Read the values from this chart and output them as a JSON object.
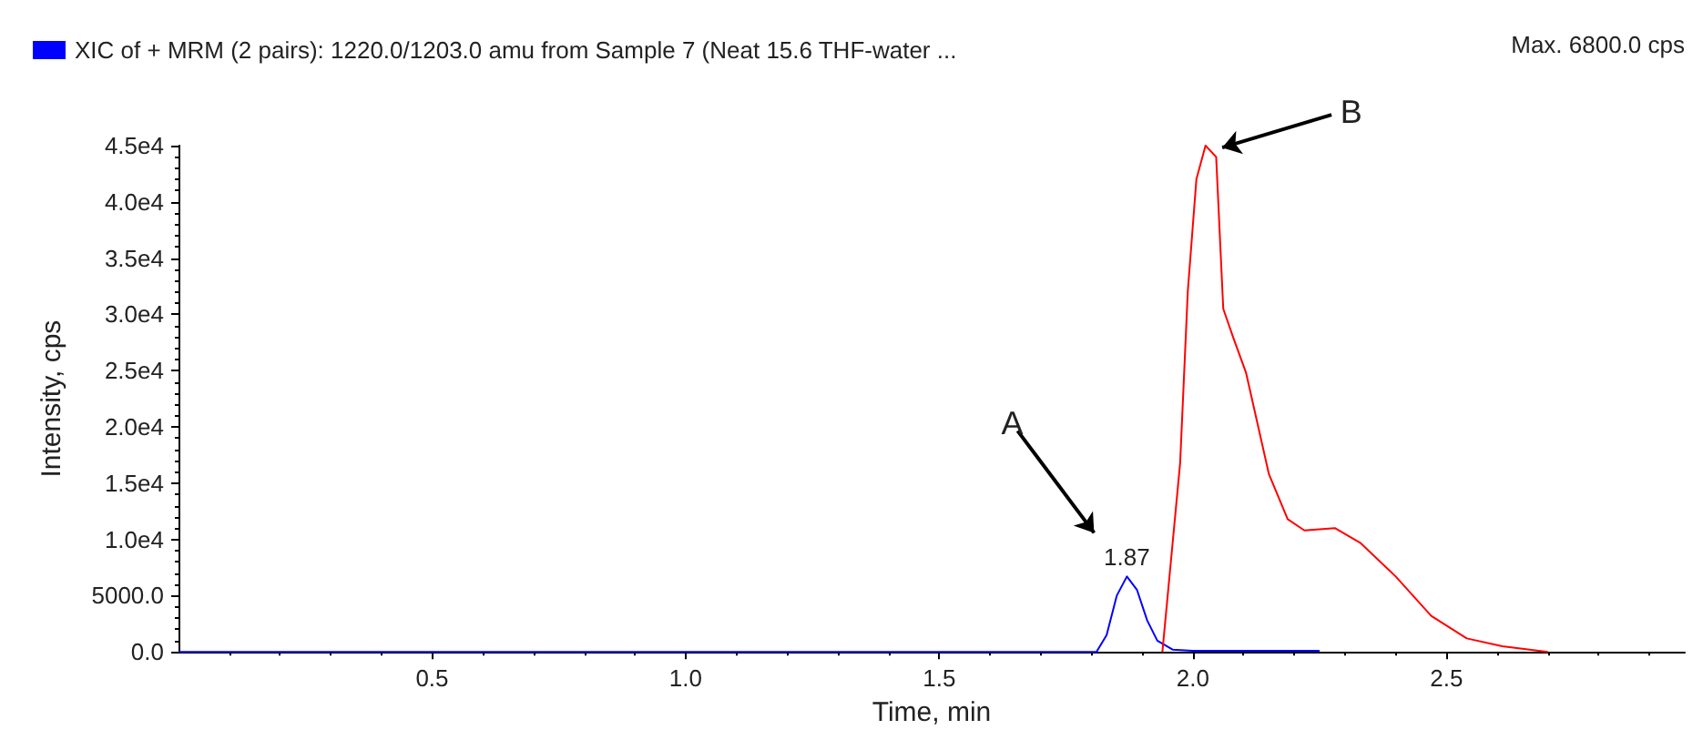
{
  "chart_data": {
    "type": "line",
    "xlabel": "Time, min",
    "ylabel": "Intensity, cps",
    "legend": "top left",
    "grid": false,
    "marker": "none",
    "line_style": "solid",
    "xlim": [
      0,
      2.97
    ],
    "xticks": [
      0.5,
      {
        "value": 1,
        "label": "1.0"
      },
      1.5,
      {
        "value": 2,
        "label": "2.0"
      },
      2.5
    ],
    "ylim": [
      0,
      45000
    ],
    "yticks": [
      {
        "value": 0,
        "label": "0.0"
      },
      {
        "value": 5000,
        "label": "5000.0"
      },
      {
        "value": 10000,
        "label": "1.0e4"
      },
      {
        "value": 15000,
        "label": "1.5e4"
      },
      {
        "value": 20000,
        "label": "2.0e4"
      },
      {
        "value": 25000,
        "label": "2.5e4"
      },
      {
        "value": 30000,
        "label": "3.0e4"
      },
      {
        "value": 35000,
        "label": "3.5e4"
      },
      {
        "value": 40000,
        "label": "4.0e4"
      },
      {
        "value": 45000,
        "label": "4.5e4"
      }
    ],
    "series": [
      {
        "name": "XIC of + MRM (2 pairs): 1220.0/1203.0 amu from Sample 7 (Neat 15.6 THF-water ...",
        "color": "#0000ff",
        "x": [
          0,
          1.8,
          1.81,
          1.83,
          1.85,
          1.87,
          1.89,
          1.91,
          1.93,
          1.96,
          2.0,
          2.1,
          2.25
        ],
        "values": [
          0,
          0,
          0,
          1500,
          5000,
          6700,
          5500,
          2800,
          1000,
          200,
          100,
          100,
          100
        ]
      },
      {
        "color": "#ff0000",
        "x": [
          1.94,
          1.975,
          1.99,
          2.007,
          2.025,
          2.046,
          2.06,
          2.08,
          2.105,
          2.13,
          2.15,
          2.187,
          2.22,
          2.28,
          2.33,
          2.4,
          2.47,
          2.54,
          2.61,
          2.7
        ],
        "values": [
          0,
          16800,
          32000,
          42000,
          45000,
          44000,
          30500,
          27900,
          24800,
          19800,
          15800,
          11800,
          10800,
          11000,
          9700,
          6700,
          3200,
          1200,
          500,
          0
        ]
      }
    ],
    "annotations": [
      "1.87",
      "A",
      {
        "text": "B",
        "x": 2.04,
        "y": 44500
      },
      "Max. 6800.0 cps"
    ]
  }
}
